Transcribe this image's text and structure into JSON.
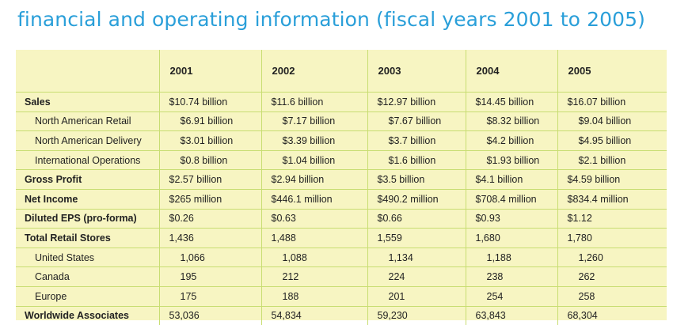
{
  "title": "financial and operating information (fiscal years 2001 to 2005)",
  "table": {
    "years": [
      "2001",
      "2002",
      "2003",
      "2004",
      "2005"
    ],
    "rows": [
      {
        "label": "Sales",
        "type": "main",
        "values": [
          "$10.74 billion",
          "$11.6 billion",
          "$12.97 billion",
          "$14.45 billion",
          "$16.07 billion"
        ]
      },
      {
        "label": "North American Retail",
        "type": "sub",
        "values": [
          "$6.91 billion",
          "$7.17 billion",
          "$7.67 billion",
          "$8.32 billion",
          "$9.04 billion"
        ]
      },
      {
        "label": "North American Delivery",
        "type": "sub",
        "values": [
          "$3.01 billion",
          "$3.39 billion",
          "$3.7 billion",
          "$4.2 billion",
          "$4.95 billion"
        ]
      },
      {
        "label": "International Operations",
        "type": "sub",
        "values": [
          "$0.8 billion",
          "$1.04 billion",
          "$1.6 billion",
          "$1.93 billion",
          "$2.1 billion"
        ]
      },
      {
        "label": "Gross Profit",
        "type": "main",
        "values": [
          "$2.57 billion",
          "$2.94 billion",
          "$3.5 billion",
          "$4.1 billion",
          "$4.59 billion"
        ]
      },
      {
        "label": "Net Income",
        "type": "main",
        "values": [
          "$265 million",
          "$446.1 million",
          "$490.2 million",
          "$708.4 million",
          "$834.4 million"
        ]
      },
      {
        "label": "Diluted EPS (pro-forma)",
        "type": "main",
        "values": [
          "$0.26",
          "$0.63",
          "$0.66",
          "$0.93",
          "$1.12"
        ]
      },
      {
        "label": "Total Retail Stores",
        "type": "main",
        "values": [
          "1,436",
          "1,488",
          "1,559",
          "1,680",
          "1,780"
        ]
      },
      {
        "label": "United States",
        "type": "sub",
        "values": [
          "1,066",
          "1,088",
          "1,134",
          "1,188",
          "1,260"
        ]
      },
      {
        "label": "Canada",
        "type": "sub",
        "values": [
          "195",
          "212",
          "224",
          "238",
          "262"
        ]
      },
      {
        "label": "Europe",
        "type": "sub",
        "values": [
          "175",
          "188",
          "201",
          "254",
          "258"
        ]
      },
      {
        "label": "Worldwide Associates",
        "type": "main",
        "values": [
          "53,036",
          "54,834",
          "59,230",
          "63,843",
          "68,304"
        ]
      }
    ]
  }
}
